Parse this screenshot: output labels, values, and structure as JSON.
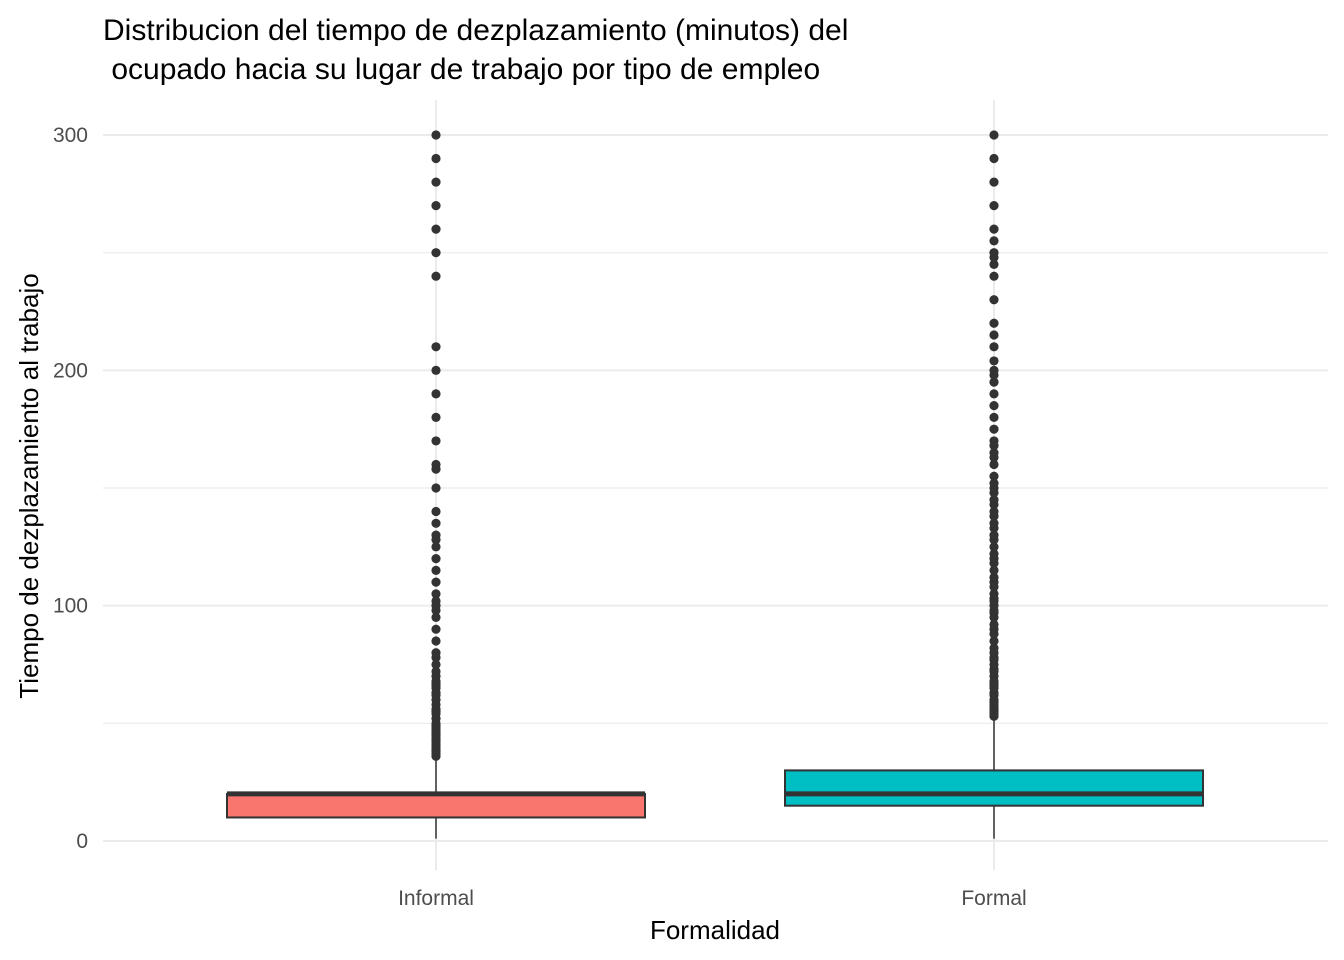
{
  "chart_data": {
    "type": "boxplot",
    "title": [
      "Distribucion del tiempo de dezplazamiento (minutos) del",
      " ocupado hacia su lugar de trabajo por tipo de empleo"
    ],
    "xlabel": "Formalidad",
    "ylabel": "Tiempo de dezplazamiento al trabajo",
    "categories": [
      "Informal",
      "Formal"
    ],
    "ylim": [
      -12,
      315
    ],
    "y_ticks": [
      0,
      100,
      200,
      300
    ],
    "y_minor_ticks": [
      50,
      150,
      250
    ],
    "grid": true,
    "legend": "none",
    "colors": {
      "Informal": "#F8766D",
      "Formal": "#00BFC4",
      "outline": "#333333",
      "grid": "#ebebeb"
    },
    "boxes": [
      {
        "category": "Informal",
        "min": 1,
        "q1": 10,
        "median": 20,
        "q3": 20,
        "max": 35,
        "outliers": [
          36,
          37,
          38,
          39,
          40,
          41,
          42,
          43,
          44,
          45,
          46,
          47,
          48,
          49,
          50,
          52,
          54,
          55,
          56,
          58,
          60,
          62,
          63,
          65,
          66,
          67,
          68,
          70,
          72,
          75,
          78,
          80,
          85,
          90,
          95,
          98,
          100,
          102,
          105,
          110,
          115,
          120,
          125,
          128,
          130,
          135,
          140,
          150,
          158,
          160,
          170,
          180,
          190,
          200,
          210,
          240,
          250,
          260,
          270,
          280,
          290,
          300
        ]
      },
      {
        "category": "Formal",
        "min": 1,
        "q1": 15,
        "median": 20,
        "q3": 30,
        "max": 52,
        "outliers": [
          53,
          54,
          55,
          56,
          57,
          58,
          59,
          60,
          62,
          63,
          65,
          66,
          67,
          68,
          70,
          72,
          73,
          75,
          77,
          78,
          80,
          82,
          85,
          88,
          90,
          92,
          95,
          97,
          98,
          100,
          102,
          103,
          105,
          108,
          110,
          112,
          115,
          118,
          120,
          122,
          125,
          128,
          130,
          133,
          135,
          138,
          140,
          143,
          145,
          148,
          150,
          152,
          155,
          160,
          163,
          165,
          168,
          170,
          175,
          180,
          185,
          190,
          195,
          198,
          200,
          204,
          210,
          215,
          220,
          230,
          240,
          245,
          248,
          250,
          255,
          260,
          270,
          280,
          290,
          300
        ]
      }
    ]
  }
}
